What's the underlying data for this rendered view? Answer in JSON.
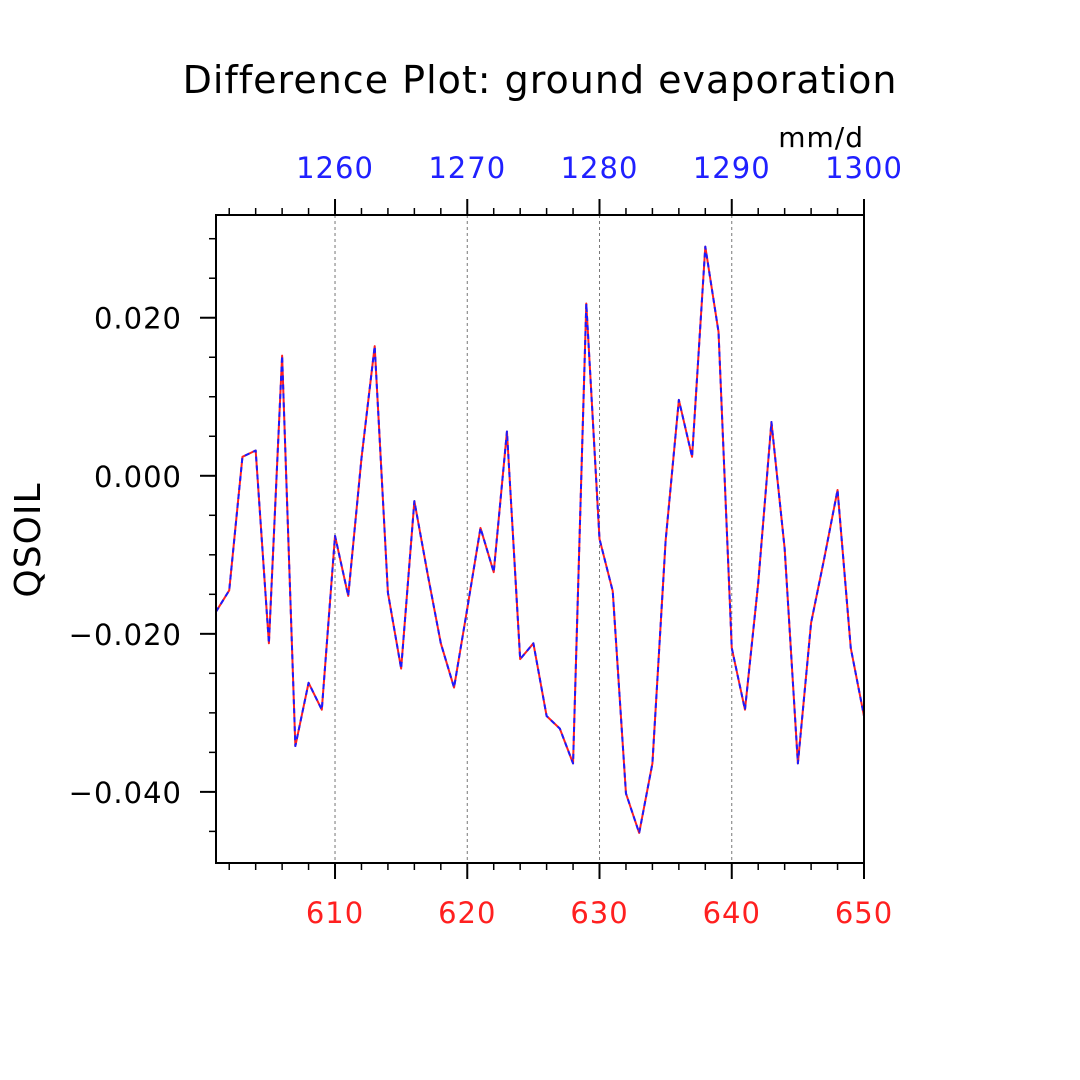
{
  "chart_data": {
    "type": "line",
    "title": "Difference Plot: ground evaporation",
    "units": "mm/d",
    "ylabel": "QSOIL",
    "xlabel": "",
    "ylim": [
      -0.049,
      0.033
    ],
    "xlim": [
      601,
      650
    ],
    "top_axis": {
      "xlim": [
        1251,
        1300
      ],
      "ticks": [
        1260,
        1270,
        1280,
        1290,
        1300
      ],
      "tick_labels": [
        "1260",
        "1270",
        "1280",
        "1290",
        "1300"
      ],
      "color": "#2020ff"
    },
    "bottom_axis": {
      "ticks": [
        610,
        620,
        630,
        640,
        650
      ],
      "tick_labels": [
        "610",
        "620",
        "630",
        "640",
        "650"
      ],
      "color": "#ff2020"
    },
    "y_ticks": [
      -0.04,
      -0.02,
      0.0,
      0.02
    ],
    "y_tick_labels": [
      "−0.040",
      "−0.020",
      "0.000",
      "0.020"
    ],
    "grid": "dashed vertical at major x ticks",
    "series": [
      {
        "color": "#ff2020",
        "style": "solid",
        "x": [
          601,
          602,
          603,
          604,
          605,
          606,
          607,
          608,
          609,
          610,
          611,
          612,
          613,
          614,
          615,
          616,
          617,
          618,
          619,
          620,
          621,
          622,
          623,
          624,
          625,
          626,
          627,
          628,
          629,
          630,
          631,
          632,
          633,
          634,
          635,
          636,
          637,
          638,
          639,
          640,
          641,
          642,
          643,
          644,
          645,
          646,
          647,
          648,
          649,
          650
        ],
        "values": [
          -0.0172,
          -0.0145,
          0.0024,
          0.0032,
          -0.0212,
          0.0152,
          -0.0342,
          -0.0262,
          -0.0296,
          -0.0076,
          -0.0152,
          0.0022,
          0.0164,
          -0.0148,
          -0.0244,
          -0.0032,
          -0.0124,
          -0.0212,
          -0.0268,
          -0.0168,
          -0.0066,
          -0.0122,
          0.0056,
          -0.0232,
          -0.0212,
          -0.0304,
          -0.032,
          -0.0364,
          0.0218,
          -0.008,
          -0.0146,
          -0.0402,
          -0.0452,
          -0.0364,
          -0.0082,
          0.0096,
          0.0024,
          0.029,
          0.0182,
          -0.0218,
          -0.0296,
          -0.0136,
          0.0068,
          -0.0092,
          -0.0364,
          -0.0186,
          -0.0104,
          -0.0018,
          -0.0218,
          -0.0304
        ]
      },
      {
        "color": "#1a1aff",
        "style": "dashed",
        "x": [
          601,
          602,
          603,
          604,
          605,
          606,
          607,
          608,
          609,
          610,
          611,
          612,
          613,
          614,
          615,
          616,
          617,
          618,
          619,
          620,
          621,
          622,
          623,
          624,
          625,
          626,
          627,
          628,
          629,
          630,
          631,
          632,
          633,
          634,
          635,
          636,
          637,
          638,
          639,
          640,
          641,
          642,
          643,
          644,
          645,
          646,
          647,
          648,
          649,
          650
        ],
        "values": [
          -0.0172,
          -0.0145,
          0.0024,
          0.0032,
          -0.0212,
          0.0152,
          -0.0342,
          -0.0262,
          -0.0296,
          -0.0076,
          -0.0152,
          0.0022,
          0.0164,
          -0.0148,
          -0.0244,
          -0.0032,
          -0.0124,
          -0.0212,
          -0.0268,
          -0.0168,
          -0.0066,
          -0.0122,
          0.0056,
          -0.0232,
          -0.0212,
          -0.0304,
          -0.032,
          -0.0364,
          0.0218,
          -0.008,
          -0.0146,
          -0.0402,
          -0.0452,
          -0.0364,
          -0.0082,
          0.0096,
          0.0024,
          0.029,
          0.0182,
          -0.0218,
          -0.0296,
          -0.0136,
          0.0068,
          -0.0092,
          -0.0364,
          -0.0186,
          -0.0104,
          -0.0018,
          -0.0218,
          -0.0304
        ]
      }
    ]
  }
}
